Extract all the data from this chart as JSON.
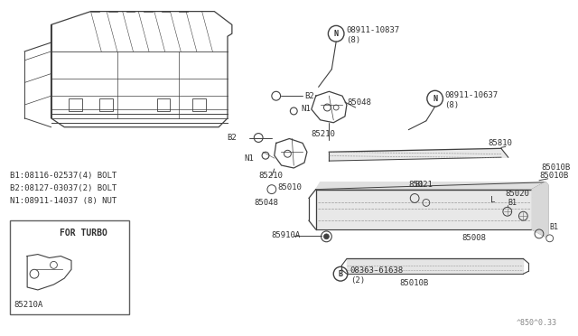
{
  "bg_color": "#ffffff",
  "line_color": "#404040",
  "text_color": "#303030",
  "fig_width": 6.4,
  "fig_height": 3.72,
  "dpi": 100,
  "legend_lines": [
    "B1:08116-02537(4) BOLT",
    "B2:08127-03037(2) BOLT",
    "N1:08911-14037 (8) NUT"
  ],
  "note": "^850^0.33"
}
